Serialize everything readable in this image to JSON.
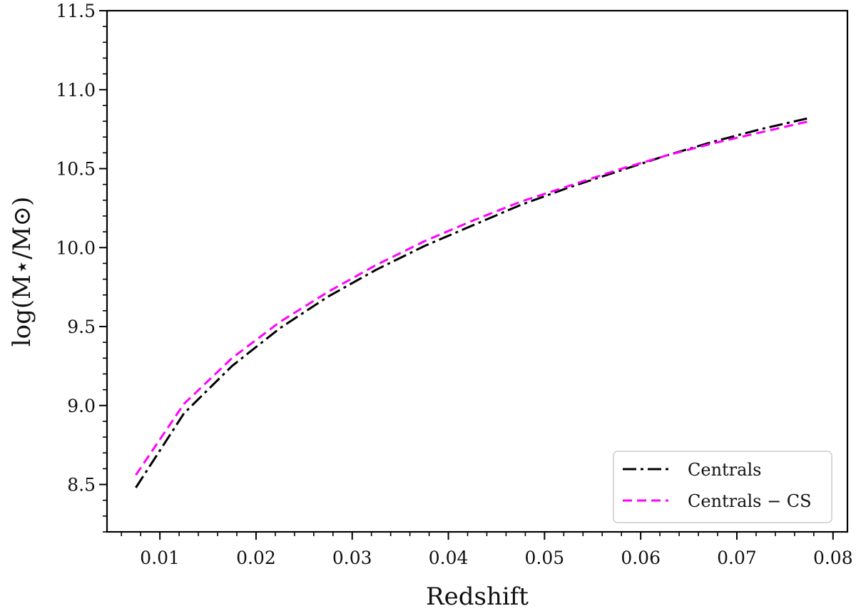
{
  "chart_data": {
    "type": "line",
    "xlabel": "Redshift",
    "ylabel": "log(M⋆/M⊙)",
    "xlim": [
      0.0045,
      0.0815
    ],
    "ylim": [
      8.2,
      11.5
    ],
    "xticks": [
      0.01,
      0.02,
      0.03,
      0.04,
      0.05,
      0.06,
      0.07,
      0.08
    ],
    "xtick_labels": [
      "0.01",
      "0.02",
      "0.03",
      "0.04",
      "0.05",
      "0.06",
      "0.07",
      "0.08"
    ],
    "yticks": [
      8.5,
      9.0,
      9.5,
      10.0,
      10.5,
      11.0,
      11.5
    ],
    "ytick_labels": [
      "8.5",
      "9.0",
      "9.5",
      "10.0",
      "10.5",
      "11.0",
      "11.5"
    ],
    "x_minor_step": 0.002,
    "y_minor_step": 0.1,
    "grid": false,
    "legend_position": "bottom-right",
    "series": [
      {
        "name": "Centrals",
        "color": "#000000",
        "style": "dash-dot",
        "x": [
          0.0075,
          0.0125,
          0.0175,
          0.0225,
          0.0275,
          0.0325,
          0.0375,
          0.0425,
          0.0475,
          0.0525,
          0.0575,
          0.0625,
          0.0675,
          0.0725,
          0.0775
        ],
        "y": [
          8.48,
          8.95,
          9.25,
          9.49,
          9.69,
          9.86,
          10.01,
          10.14,
          10.27,
          10.38,
          10.48,
          10.58,
          10.67,
          10.75,
          10.82
        ]
      },
      {
        "name": "Centrals − CS",
        "color": "#ff00ff",
        "style": "dashed",
        "x": [
          0.0075,
          0.0125,
          0.0175,
          0.0225,
          0.0275,
          0.0325,
          0.0375,
          0.0425,
          0.0475,
          0.0525,
          0.0575,
          0.0625,
          0.0675,
          0.0725,
          0.0775
        ],
        "y": [
          8.56,
          9.01,
          9.3,
          9.53,
          9.72,
          9.89,
          10.04,
          10.17,
          10.29,
          10.39,
          10.49,
          10.58,
          10.66,
          10.73,
          10.8
        ]
      }
    ]
  }
}
